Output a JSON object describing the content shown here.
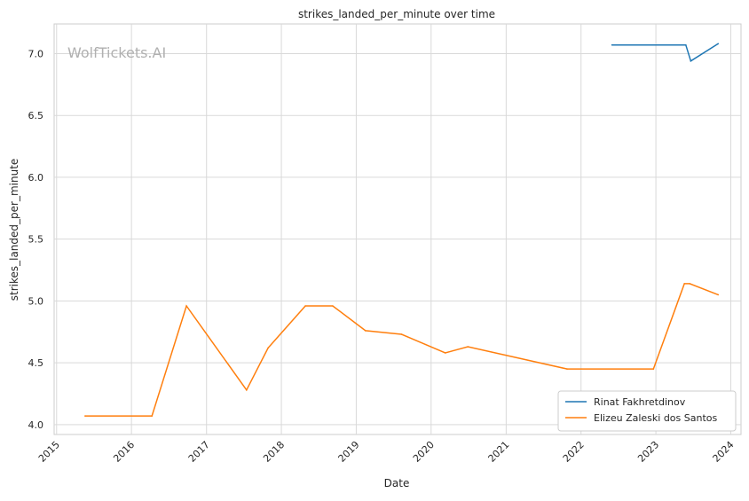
{
  "watermark": "WolfTickets.AI",
  "chart_data": {
    "type": "line",
    "title": "strikes_landed_per_minute over time",
    "xlabel": "Date",
    "ylabel": "strikes_landed_per_minute",
    "x_ticks": [
      "2015",
      "2016",
      "2017",
      "2018",
      "2019",
      "2020",
      "2021",
      "2022",
      "2023",
      "2024"
    ],
    "y_ticks": [
      "4.0",
      "4.5",
      "5.0",
      "5.5",
      "6.0",
      "6.5",
      "7.0"
    ],
    "xlim": [
      "2014-12-20",
      "2024-02-20"
    ],
    "ylim": [
      3.92,
      7.24
    ],
    "grid": true,
    "legend_position": "lower-right",
    "series": [
      {
        "name": "Rinat Fakhretdinov",
        "color": "#1f77b4",
        "points": [
          {
            "x": "2022-06-01",
            "y": 7.07
          },
          {
            "x": "2023-05-27",
            "y": 7.07
          },
          {
            "x": "2023-06-20",
            "y": 6.94
          },
          {
            "x": "2023-11-01",
            "y": 7.08
          }
        ]
      },
      {
        "name": "Elizeu Zaleski dos Santos",
        "color": "#ff7f0e",
        "points": [
          {
            "x": "2015-05-20",
            "y": 4.07
          },
          {
            "x": "2016-04-10",
            "y": 4.07
          },
          {
            "x": "2016-09-25",
            "y": 4.96
          },
          {
            "x": "2017-07-15",
            "y": 4.28
          },
          {
            "x": "2017-10-28",
            "y": 4.62
          },
          {
            "x": "2018-04-28",
            "y": 4.96
          },
          {
            "x": "2018-09-08",
            "y": 4.96
          },
          {
            "x": "2019-02-15",
            "y": 4.76
          },
          {
            "x": "2019-08-10",
            "y": 4.73
          },
          {
            "x": "2020-03-10",
            "y": 4.58
          },
          {
            "x": "2020-06-28",
            "y": 4.63
          },
          {
            "x": "2021-10-25",
            "y": 4.45
          },
          {
            "x": "2022-12-20",
            "y": 4.45
          },
          {
            "x": "2023-05-20",
            "y": 5.14
          },
          {
            "x": "2023-06-15",
            "y": 5.14
          },
          {
            "x": "2023-11-01",
            "y": 5.05
          }
        ]
      }
    ]
  }
}
